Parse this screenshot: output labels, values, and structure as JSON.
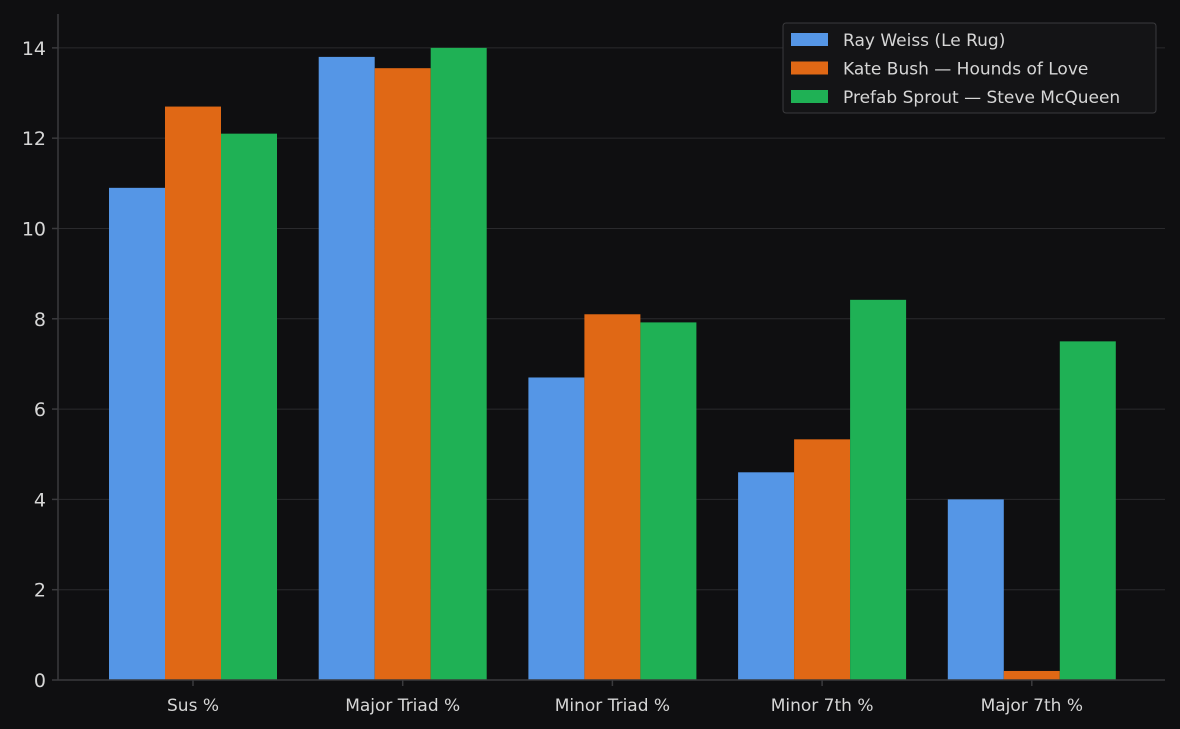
{
  "chart_data": {
    "type": "bar",
    "title": "",
    "xlabel": "",
    "ylabel": "",
    "categories": [
      "Sus %",
      "Major Triad %",
      "Minor Triad %",
      "Minor 7th %",
      "Major 7th %"
    ],
    "series": [
      {
        "name": "Ray Weiss (Le Rug)",
        "color": "#5596e6",
        "values": [
          10.9,
          13.8,
          6.7,
          4.6,
          4.0
        ]
      },
      {
        "name": "Kate Bush — Hounds of Love",
        "color": "#e06815",
        "values": [
          12.7,
          13.55,
          8.1,
          5.33,
          0.2
        ]
      },
      {
        "name": "Prefab Sprout — Steve McQueen",
        "color": "#1fb155",
        "values": [
          12.1,
          14.0,
          7.92,
          8.42,
          7.5
        ]
      }
    ],
    "ylim": [
      0,
      14.75
    ],
    "yticks": [
      0,
      2,
      4,
      6,
      8,
      10,
      12,
      14
    ],
    "grid": true,
    "legend_position": "top-right",
    "colors": {
      "background": "#0f0f11",
      "grid": "#2a2a2d",
      "axis": "#3a3a3d",
      "text": "#d6d6d6"
    }
  }
}
